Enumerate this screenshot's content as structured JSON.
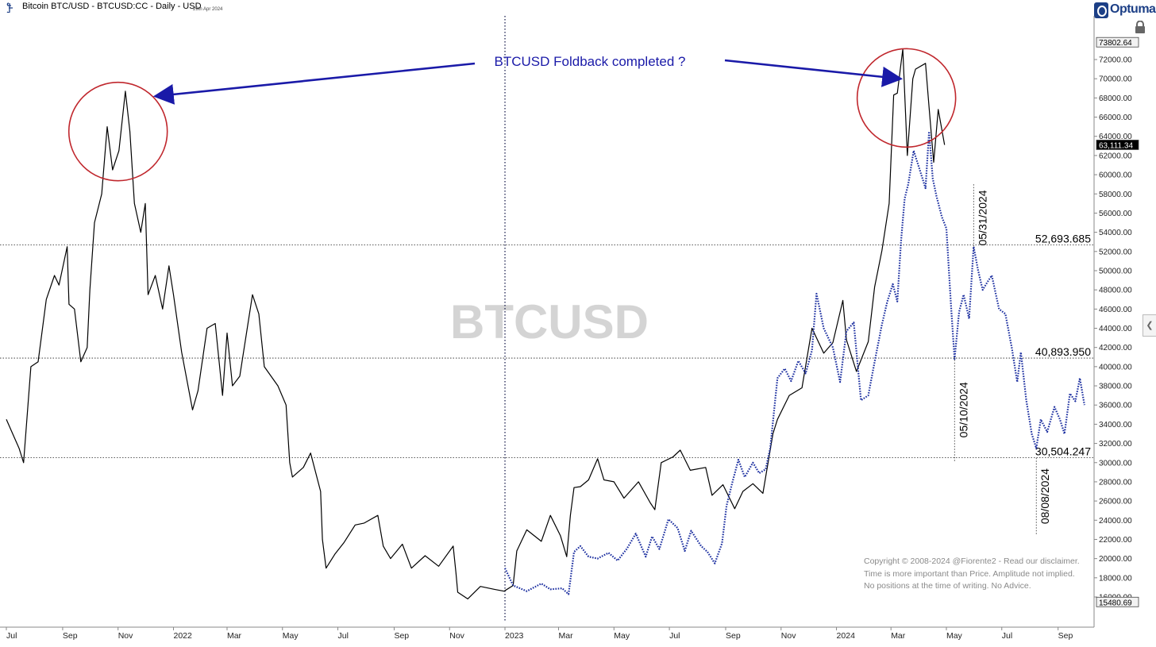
{
  "header": {
    "title": "Bitcoin BTC/USD - BTCUSD:CC - Daily - USD",
    "date": "29th Apr 2024",
    "brand": "Optuma"
  },
  "chart_data": {
    "type": "line",
    "watermark": "BTCUSD",
    "annotation": "BTCUSD Foldback completed ?",
    "ylim": [
      15480.69,
      73802.64
    ],
    "y_ticks": [
      72000,
      70000,
      68000,
      66000,
      64000,
      62000,
      60000,
      58000,
      56000,
      54000,
      52000,
      50000,
      48000,
      46000,
      44000,
      42000,
      40000,
      38000,
      36000,
      34000,
      32000,
      30000,
      28000,
      26000,
      24000,
      22000,
      20000,
      18000,
      16000
    ],
    "y_tick_labels": [
      "72000.00",
      "70000.00",
      "68000.00",
      "66000.00",
      "64000.00",
      "62000.00",
      "60000.00",
      "58000.00",
      "56000.00",
      "54000.00",
      "52000.00",
      "50000.00",
      "48000.00",
      "46000.00",
      "44000.00",
      "42000.00",
      "40000.00",
      "38000.00",
      "36000.00",
      "34000.00",
      "32000.00",
      "30000.00",
      "28000.00",
      "26000.00",
      "24000.00",
      "22000.00",
      "20000.00",
      "18000.00",
      "16000.00"
    ],
    "y_max_label": "73802.64",
    "y_min_label": "15480.69",
    "last_price_label": "63,111.34",
    "last_price": 63111.34,
    "x_tick_labels": [
      "Jul",
      "Sep",
      "Nov",
      "2022",
      "Mar",
      "May",
      "Jul",
      "Sep",
      "Nov",
      "2023",
      "Mar",
      "May",
      "Jul",
      "Sep",
      "Nov",
      "2024",
      "Mar",
      "May",
      "Jul",
      "Sep"
    ],
    "x_tick_dates": [
      "2021-07-01",
      "2021-09-01",
      "2021-11-01",
      "2022-01-01",
      "2022-03-01",
      "2022-05-01",
      "2022-07-01",
      "2022-09-01",
      "2022-11-01",
      "2023-01-01",
      "2023-03-01",
      "2023-05-01",
      "2023-07-01",
      "2023-09-01",
      "2023-11-01",
      "2024-01-01",
      "2024-03-01",
      "2024-05-01",
      "2024-07-01",
      "2024-09-01"
    ],
    "levels": [
      {
        "label": "52,693.685",
        "value": 52693.685
      },
      {
        "label": "40,893.950",
        "value": 40893.95
      },
      {
        "label": "30,504.247",
        "value": 30504.247
      }
    ],
    "date_marks": [
      {
        "label": "05/31/2024",
        "date": "2024-05-31",
        "value": 58500
      },
      {
        "label": "05/10/2024",
        "date": "2024-05-10",
        "value": 30504
      },
      {
        "label": "08/08/2024",
        "date": "2024-08-08",
        "value": 23000
      }
    ],
    "split_date": "2023-01-01",
    "circles": [
      {
        "date": "2021-11-01",
        "value": 64500
      },
      {
        "date": "2024-03-18",
        "value": 68000
      }
    ],
    "series": [
      {
        "style": "solid",
        "color": "#000000",
        "points": [
          [
            "2021-07-01",
            34500
          ],
          [
            "2021-07-08",
            33000
          ],
          [
            "2021-07-15",
            31500
          ],
          [
            "2021-07-20",
            30000
          ],
          [
            "2021-07-28",
            40000
          ],
          [
            "2021-08-05",
            40500
          ],
          [
            "2021-08-14",
            47000
          ],
          [
            "2021-08-23",
            49500
          ],
          [
            "2021-08-28",
            48500
          ],
          [
            "2021-09-06",
            52500
          ],
          [
            "2021-09-08",
            46500
          ],
          [
            "2021-09-14",
            46000
          ],
          [
            "2021-09-21",
            40500
          ],
          [
            "2021-09-28",
            42000
          ],
          [
            "2021-10-01",
            48000
          ],
          [
            "2021-10-06",
            55000
          ],
          [
            "2021-10-14",
            58000
          ],
          [
            "2021-10-20",
            65000
          ],
          [
            "2021-10-26",
            60500
          ],
          [
            "2021-11-02",
            62500
          ],
          [
            "2021-11-09",
            68700
          ],
          [
            "2021-11-14",
            64500
          ],
          [
            "2021-11-19",
            57000
          ],
          [
            "2021-11-26",
            54000
          ],
          [
            "2021-12-01",
            57000
          ],
          [
            "2021-12-04",
            47500
          ],
          [
            "2021-12-12",
            49500
          ],
          [
            "2021-12-20",
            46000
          ],
          [
            "2021-12-27",
            50500
          ],
          [
            "2022-01-01",
            47500
          ],
          [
            "2022-01-10",
            41500
          ],
          [
            "2022-01-22",
            35500
          ],
          [
            "2022-01-28",
            37500
          ],
          [
            "2022-02-07",
            44000
          ],
          [
            "2022-02-16",
            44500
          ],
          [
            "2022-02-24",
            37000
          ],
          [
            "2022-03-01",
            43500
          ],
          [
            "2022-03-07",
            38000
          ],
          [
            "2022-03-15",
            39000
          ],
          [
            "2022-03-29",
            47500
          ],
          [
            "2022-04-05",
            45500
          ],
          [
            "2022-04-11",
            40000
          ],
          [
            "2022-04-26",
            38000
          ],
          [
            "2022-05-05",
            36000
          ],
          [
            "2022-05-09",
            30000
          ],
          [
            "2022-05-12",
            28500
          ],
          [
            "2022-05-24",
            29500
          ],
          [
            "2022-06-01",
            31000
          ],
          [
            "2022-06-12",
            27000
          ],
          [
            "2022-06-14",
            22000
          ],
          [
            "2022-06-18",
            19000
          ],
          [
            "2022-06-28",
            20500
          ],
          [
            "2022-07-08",
            21700
          ],
          [
            "2022-07-20",
            23500
          ],
          [
            "2022-07-30",
            23700
          ],
          [
            "2022-08-14",
            24500
          ],
          [
            "2022-08-20",
            21300
          ],
          [
            "2022-08-28",
            20000
          ],
          [
            "2022-09-10",
            21500
          ],
          [
            "2022-09-20",
            19000
          ],
          [
            "2022-10-05",
            20300
          ],
          [
            "2022-10-20",
            19200
          ],
          [
            "2022-11-05",
            21300
          ],
          [
            "2022-11-08",
            18500
          ],
          [
            "2022-11-10",
            16500
          ],
          [
            "2022-11-21",
            15800
          ],
          [
            "2022-12-05",
            17100
          ],
          [
            "2022-12-20",
            16800
          ],
          [
            "2022-12-31",
            16600
          ],
          [
            "2023-01-10",
            17200
          ],
          [
            "2023-01-14",
            20800
          ],
          [
            "2023-01-25",
            23000
          ],
          [
            "2023-02-10",
            21800
          ],
          [
            "2023-02-20",
            24500
          ],
          [
            "2023-03-03",
            22400
          ],
          [
            "2023-03-10",
            20200
          ],
          [
            "2023-03-14",
            24500
          ],
          [
            "2023-03-18",
            27400
          ],
          [
            "2023-03-25",
            27500
          ],
          [
            "2023-04-03",
            28200
          ],
          [
            "2023-04-13",
            30400
          ],
          [
            "2023-04-20",
            28200
          ],
          [
            "2023-05-01",
            28000
          ],
          [
            "2023-05-12",
            26300
          ],
          [
            "2023-05-28",
            28000
          ],
          [
            "2023-06-10",
            25800
          ],
          [
            "2023-06-15",
            25100
          ],
          [
            "2023-06-22",
            30000
          ],
          [
            "2023-07-05",
            30600
          ],
          [
            "2023-07-13",
            31300
          ],
          [
            "2023-07-24",
            29200
          ],
          [
            "2023-08-10",
            29500
          ],
          [
            "2023-08-17",
            26600
          ],
          [
            "2023-08-29",
            27700
          ],
          [
            "2023-09-11",
            25200
          ],
          [
            "2023-09-20",
            27000
          ],
          [
            "2023-10-01",
            27800
          ],
          [
            "2023-10-12",
            26800
          ],
          [
            "2023-10-23",
            33000
          ],
          [
            "2023-10-28",
            34500
          ],
          [
            "2023-11-10",
            37000
          ],
          [
            "2023-11-24",
            37800
          ],
          [
            "2023-12-05",
            44000
          ],
          [
            "2023-12-18",
            41400
          ],
          [
            "2023-12-28",
            42500
          ],
          [
            "2024-01-08",
            46900
          ],
          [
            "2024-01-12",
            42800
          ],
          [
            "2024-01-23",
            39500
          ],
          [
            "2024-02-05",
            42600
          ],
          [
            "2024-02-12",
            48300
          ],
          [
            "2024-02-20",
            52100
          ],
          [
            "2024-02-28",
            57000
          ],
          [
            "2024-03-04",
            68300
          ],
          [
            "2024-03-08",
            68500
          ],
          [
            "2024-03-14",
            73100
          ],
          [
            "2024-03-19",
            62000
          ],
          [
            "2024-03-25",
            70000
          ],
          [
            "2024-03-28",
            71000
          ],
          [
            "2024-04-08",
            71600
          ],
          [
            "2024-04-12",
            67000
          ],
          [
            "2024-04-17",
            61300
          ],
          [
            "2024-04-22",
            66800
          ],
          [
            "2024-04-29",
            63111
          ]
        ]
      },
      {
        "style": "dotted",
        "color": "#1c2fa0",
        "points": [
          [
            "2023-01-01",
            19000
          ],
          [
            "2023-01-10",
            17200
          ],
          [
            "2023-01-25",
            16600
          ],
          [
            "2023-02-10",
            17400
          ],
          [
            "2023-02-20",
            16800
          ],
          [
            "2023-03-05",
            16900
          ],
          [
            "2023-03-12",
            16300
          ],
          [
            "2023-03-18",
            20700
          ],
          [
            "2023-03-25",
            21300
          ],
          [
            "2023-04-03",
            20200
          ],
          [
            "2023-04-13",
            20000
          ],
          [
            "2023-04-25",
            20600
          ],
          [
            "2023-05-05",
            19800
          ],
          [
            "2023-05-15",
            21000
          ],
          [
            "2023-05-25",
            22600
          ],
          [
            "2023-06-05",
            20200
          ],
          [
            "2023-06-12",
            22300
          ],
          [
            "2023-06-20",
            21000
          ],
          [
            "2023-06-30",
            24100
          ],
          [
            "2023-07-10",
            23200
          ],
          [
            "2023-07-18",
            20800
          ],
          [
            "2023-07-25",
            22900
          ],
          [
            "2023-08-05",
            21300
          ],
          [
            "2023-08-12",
            20700
          ],
          [
            "2023-08-20",
            19500
          ],
          [
            "2023-08-28",
            21600
          ],
          [
            "2023-09-02",
            25500
          ],
          [
            "2023-09-08",
            27800
          ],
          [
            "2023-09-15",
            30300
          ],
          [
            "2023-09-22",
            28500
          ],
          [
            "2023-10-01",
            30000
          ],
          [
            "2023-10-08",
            28900
          ],
          [
            "2023-10-15",
            29300
          ],
          [
            "2023-10-20",
            31500
          ],
          [
            "2023-10-28",
            38800
          ],
          [
            "2023-11-05",
            39800
          ],
          [
            "2023-11-12",
            38500
          ],
          [
            "2023-11-20",
            40600
          ],
          [
            "2023-11-28",
            39300
          ],
          [
            "2023-12-05",
            41700
          ],
          [
            "2023-12-10",
            47600
          ],
          [
            "2023-12-18",
            44000
          ],
          [
            "2023-12-28",
            42000
          ],
          [
            "2024-01-05",
            38400
          ],
          [
            "2024-01-12",
            43700
          ],
          [
            "2024-01-20",
            44600
          ],
          [
            "2024-01-28",
            36500
          ],
          [
            "2024-02-05",
            37000
          ],
          [
            "2024-02-12",
            40500
          ],
          [
            "2024-02-20",
            44400
          ],
          [
            "2024-02-26",
            46800
          ],
          [
            "2024-03-03",
            48600
          ],
          [
            "2024-03-08",
            46800
          ],
          [
            "2024-03-12",
            53000
          ],
          [
            "2024-03-16",
            57500
          ],
          [
            "2024-03-20",
            59000
          ],
          [
            "2024-03-26",
            62500
          ],
          [
            "2024-04-01",
            60700
          ],
          [
            "2024-04-08",
            58600
          ],
          [
            "2024-04-12",
            64500
          ],
          [
            "2024-04-16",
            59600
          ],
          [
            "2024-04-20",
            57800
          ],
          [
            "2024-04-26",
            55600
          ],
          [
            "2024-05-01",
            54400
          ],
          [
            "2024-05-06",
            46500
          ],
          [
            "2024-05-10",
            40800
          ],
          [
            "2024-05-15",
            45700
          ],
          [
            "2024-05-20",
            47500
          ],
          [
            "2024-05-26",
            45000
          ],
          [
            "2024-05-31",
            52500
          ],
          [
            "2024-06-05",
            50000
          ],
          [
            "2024-06-10",
            48000
          ],
          [
            "2024-06-15",
            48800
          ],
          [
            "2024-06-20",
            49500
          ],
          [
            "2024-06-28",
            46000
          ],
          [
            "2024-07-05",
            45500
          ],
          [
            "2024-07-12",
            42000
          ],
          [
            "2024-07-18",
            38400
          ],
          [
            "2024-07-22",
            41500
          ],
          [
            "2024-07-28",
            36500
          ],
          [
            "2024-08-03",
            33000
          ],
          [
            "2024-08-08",
            31500
          ],
          [
            "2024-08-13",
            34500
          ],
          [
            "2024-08-20",
            33200
          ],
          [
            "2024-08-28",
            35800
          ],
          [
            "2024-09-03",
            34500
          ],
          [
            "2024-09-08",
            33000
          ],
          [
            "2024-09-14",
            37200
          ],
          [
            "2024-09-20",
            36400
          ],
          [
            "2024-09-25",
            38800
          ],
          [
            "2024-09-30",
            36000
          ]
        ]
      }
    ]
  },
  "footer": {
    "copyright_line1": "Copyright © 2008-2024 @Fiorente2 -   Read our disclaimer.",
    "copyright_line2": "Time is more important than Price. Amplitude not implied.",
    "copyright_line3": "No positions at the time of writing. No Advice."
  },
  "ui": {
    "side_tab": "❮"
  }
}
